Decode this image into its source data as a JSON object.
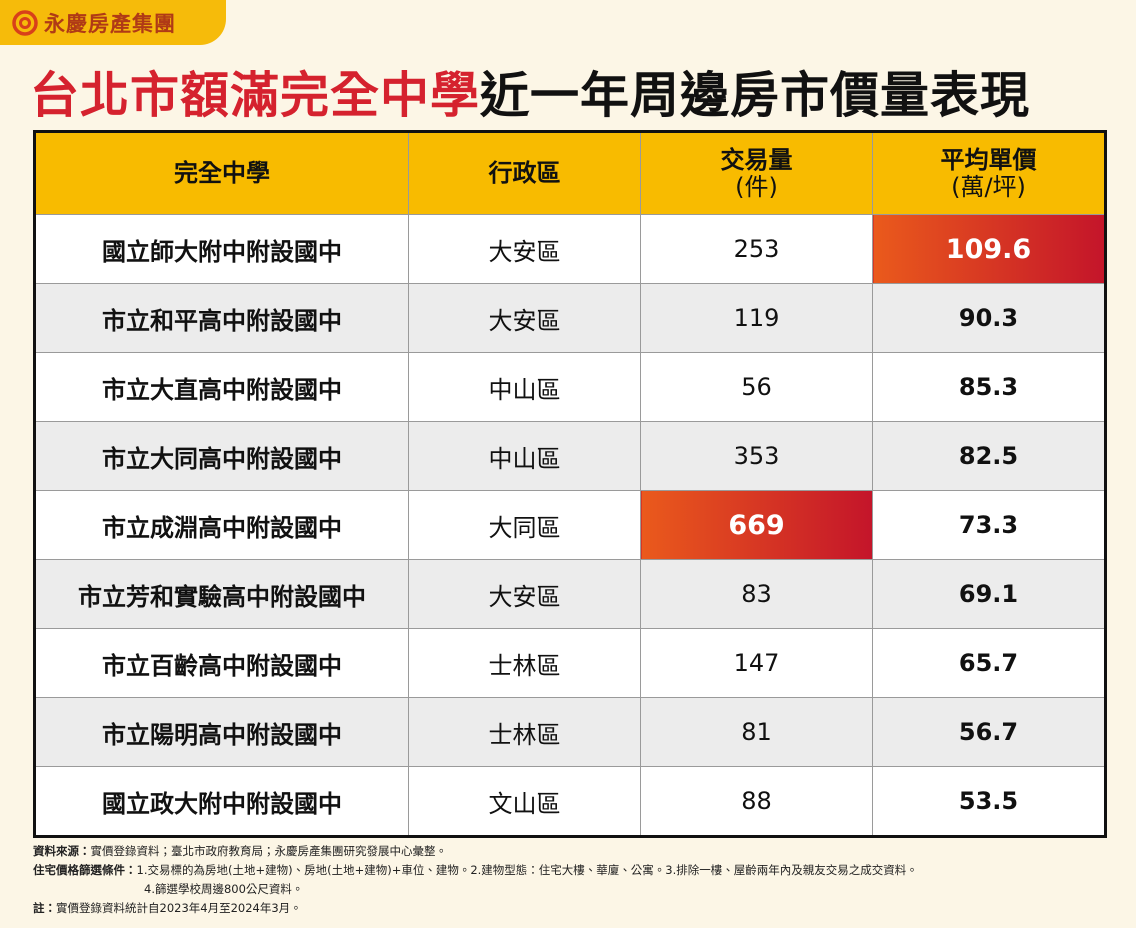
{
  "header": {
    "logo": "永慶房產集團",
    "title_highlight": "台北市額滿完全中學",
    "title_rest": "近一年周邊房市價量表現"
  },
  "table": {
    "columns": [
      {
        "title": "完全中學"
      },
      {
        "title": "行政區"
      },
      {
        "title": "交易量",
        "unit": "(件)"
      },
      {
        "title": "平均單價",
        "unit": "(萬/坪)"
      }
    ],
    "rows": [
      [
        "國立師大附中附設國中",
        "大安區",
        253,
        109.6
      ],
      [
        "市立和平高中附設國中",
        "大安區",
        119,
        90.3
      ],
      [
        "市立大直高中附設國中",
        "中山區",
        56,
        85.3
      ],
      [
        "市立大同高中附設國中",
        "中山區",
        353,
        82.5
      ],
      [
        "市立成淵高中附設國中",
        "大同區",
        669,
        73.3
      ],
      [
        "市立芳和實驗高中附設國中",
        "大安區",
        83,
        69.1
      ],
      [
        "市立百齡高中附設國中",
        "士林區",
        147,
        65.7
      ],
      [
        "市立陽明高中附設國中",
        "士林區",
        81,
        56.7
      ],
      [
        "國立政大附中附設國中",
        "文山區",
        88,
        53.5
      ]
    ]
  },
  "notes": {
    "source_label": "資料來源：",
    "source": "實價登錄資料；臺北市政府教育局；永慶房產集團研究發展中心彙整。",
    "filter_label": "住宅價格篩選條件：",
    "filter_1": "1.交易標的為房地(土地+建物)、房地(土地+建物)+車位、建物。2.建物型態：住宅大樓、華廈、公寓。3.排除一樓、屋齡兩年內及親友交易之成交資料。",
    "filter_2": "4.篩選學校周邊800公尺資料。",
    "note_label": "註：",
    "note": "實價登錄資料統計自2023年4月至2024年3月。"
  }
}
